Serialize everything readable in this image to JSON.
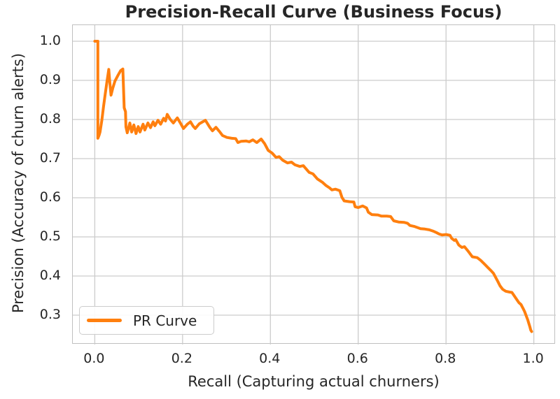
{
  "figure": {
    "background": "#ffffff",
    "text_color": "#262626",
    "grid_color": "#cccccc",
    "spine_color": "#c0c0c0"
  },
  "chart_data": {
    "type": "line",
    "title": "Precision-Recall Curve (Business Focus)",
    "xlabel": "Recall (Capturing actual churners)",
    "ylabel": "Precision (Accuracy of churn alerts)",
    "xlim": [
      -0.05,
      1.05
    ],
    "ylim": [
      0.225,
      1.041
    ],
    "xticks": [
      0.0,
      0.2,
      0.4,
      0.6,
      0.8,
      1.0
    ],
    "yticks": [
      0.3,
      0.4,
      0.5,
      0.6,
      0.7,
      0.8,
      0.9,
      1.0
    ],
    "grid": true,
    "legend": {
      "position": "lower left",
      "entries": [
        {
          "label": "PR Curve",
          "color": "#ff7f0e"
        }
      ]
    },
    "series": [
      {
        "name": "PR Curve",
        "color": "#ff7f0e",
        "linewidth": 4,
        "points": [
          [
            0.0,
            1.0
          ],
          [
            0.007,
            1.0
          ],
          [
            0.007,
            0.752
          ],
          [
            0.01,
            0.76
          ],
          [
            0.012,
            0.768
          ],
          [
            0.016,
            0.797
          ],
          [
            0.02,
            0.833
          ],
          [
            0.024,
            0.866
          ],
          [
            0.028,
            0.898
          ],
          [
            0.032,
            0.928
          ],
          [
            0.034,
            0.898
          ],
          [
            0.037,
            0.862
          ],
          [
            0.041,
            0.88
          ],
          [
            0.046,
            0.898
          ],
          [
            0.053,
            0.913
          ],
          [
            0.059,
            0.925
          ],
          [
            0.064,
            0.929
          ],
          [
            0.066,
            0.862
          ],
          [
            0.067,
            0.83
          ],
          [
            0.07,
            0.82
          ],
          [
            0.071,
            0.781
          ],
          [
            0.074,
            0.766
          ],
          [
            0.08,
            0.791
          ],
          [
            0.084,
            0.768
          ],
          [
            0.089,
            0.786
          ],
          [
            0.094,
            0.764
          ],
          [
            0.099,
            0.782
          ],
          [
            0.103,
            0.768
          ],
          [
            0.11,
            0.788
          ],
          [
            0.114,
            0.773
          ],
          [
            0.121,
            0.791
          ],
          [
            0.127,
            0.779
          ],
          [
            0.133,
            0.794
          ],
          [
            0.137,
            0.784
          ],
          [
            0.144,
            0.798
          ],
          [
            0.15,
            0.788
          ],
          [
            0.157,
            0.803
          ],
          [
            0.161,
            0.796
          ],
          [
            0.165,
            0.813
          ],
          [
            0.172,
            0.8
          ],
          [
            0.179,
            0.791
          ],
          [
            0.188,
            0.804
          ],
          [
            0.196,
            0.789
          ],
          [
            0.202,
            0.777
          ],
          [
            0.211,
            0.788
          ],
          [
            0.218,
            0.794
          ],
          [
            0.224,
            0.783
          ],
          [
            0.229,
            0.777
          ],
          [
            0.238,
            0.789
          ],
          [
            0.252,
            0.798
          ],
          [
            0.262,
            0.78
          ],
          [
            0.268,
            0.771
          ],
          [
            0.276,
            0.78
          ],
          [
            0.285,
            0.768
          ],
          [
            0.291,
            0.759
          ],
          [
            0.301,
            0.754
          ],
          [
            0.312,
            0.752
          ],
          [
            0.321,
            0.751
          ],
          [
            0.326,
            0.741
          ],
          [
            0.333,
            0.744
          ],
          [
            0.345,
            0.745
          ],
          [
            0.352,
            0.743
          ],
          [
            0.36,
            0.748
          ],
          [
            0.369,
            0.741
          ],
          [
            0.379,
            0.75
          ],
          [
            0.387,
            0.738
          ],
          [
            0.395,
            0.721
          ],
          [
            0.404,
            0.714
          ],
          [
            0.413,
            0.703
          ],
          [
            0.42,
            0.705
          ],
          [
            0.428,
            0.696
          ],
          [
            0.439,
            0.689
          ],
          [
            0.448,
            0.691
          ],
          [
            0.456,
            0.684
          ],
          [
            0.467,
            0.68
          ],
          [
            0.475,
            0.682
          ],
          [
            0.488,
            0.665
          ],
          [
            0.497,
            0.661
          ],
          [
            0.507,
            0.648
          ],
          [
            0.519,
            0.639
          ],
          [
            0.527,
            0.631
          ],
          [
            0.535,
            0.625
          ],
          [
            0.54,
            0.62
          ],
          [
            0.548,
            0.622
          ],
          [
            0.558,
            0.618
          ],
          [
            0.563,
            0.601
          ],
          [
            0.568,
            0.592
          ],
          [
            0.58,
            0.59
          ],
          [
            0.59,
            0.589
          ],
          [
            0.593,
            0.577
          ],
          [
            0.6,
            0.575
          ],
          [
            0.61,
            0.579
          ],
          [
            0.619,
            0.574
          ],
          [
            0.623,
            0.563
          ],
          [
            0.631,
            0.557
          ],
          [
            0.645,
            0.556
          ],
          [
            0.653,
            0.553
          ],
          [
            0.665,
            0.553
          ],
          [
            0.674,
            0.552
          ],
          [
            0.681,
            0.541
          ],
          [
            0.692,
            0.538
          ],
          [
            0.705,
            0.537
          ],
          [
            0.712,
            0.535
          ],
          [
            0.718,
            0.529
          ],
          [
            0.727,
            0.527
          ],
          [
            0.742,
            0.521
          ],
          [
            0.752,
            0.52
          ],
          [
            0.762,
            0.518
          ],
          [
            0.77,
            0.515
          ],
          [
            0.778,
            0.511
          ],
          [
            0.785,
            0.507
          ],
          [
            0.791,
            0.505
          ],
          [
            0.8,
            0.506
          ],
          [
            0.809,
            0.504
          ],
          [
            0.813,
            0.496
          ],
          [
            0.819,
            0.491
          ],
          [
            0.822,
            0.493
          ],
          [
            0.829,
            0.479
          ],
          [
            0.836,
            0.473
          ],
          [
            0.842,
            0.475
          ],
          [
            0.85,
            0.464
          ],
          [
            0.856,
            0.455
          ],
          [
            0.86,
            0.449
          ],
          [
            0.871,
            0.447
          ],
          [
            0.879,
            0.44
          ],
          [
            0.888,
            0.43
          ],
          [
            0.895,
            0.422
          ],
          [
            0.903,
            0.413
          ],
          [
            0.908,
            0.407
          ],
          [
            0.918,
            0.386
          ],
          [
            0.923,
            0.375
          ],
          [
            0.929,
            0.366
          ],
          [
            0.936,
            0.361
          ],
          [
            0.945,
            0.359
          ],
          [
            0.95,
            0.358
          ],
          [
            0.955,
            0.35
          ],
          [
            0.961,
            0.34
          ],
          [
            0.966,
            0.332
          ],
          [
            0.971,
            0.327
          ],
          [
            0.975,
            0.318
          ],
          [
            0.979,
            0.309
          ],
          [
            0.983,
            0.297
          ],
          [
            0.986,
            0.288
          ],
          [
            0.988,
            0.281
          ],
          [
            0.991,
            0.27
          ],
          [
            0.993,
            0.262
          ],
          [
            0.995,
            0.258
          ]
        ]
      }
    ]
  }
}
